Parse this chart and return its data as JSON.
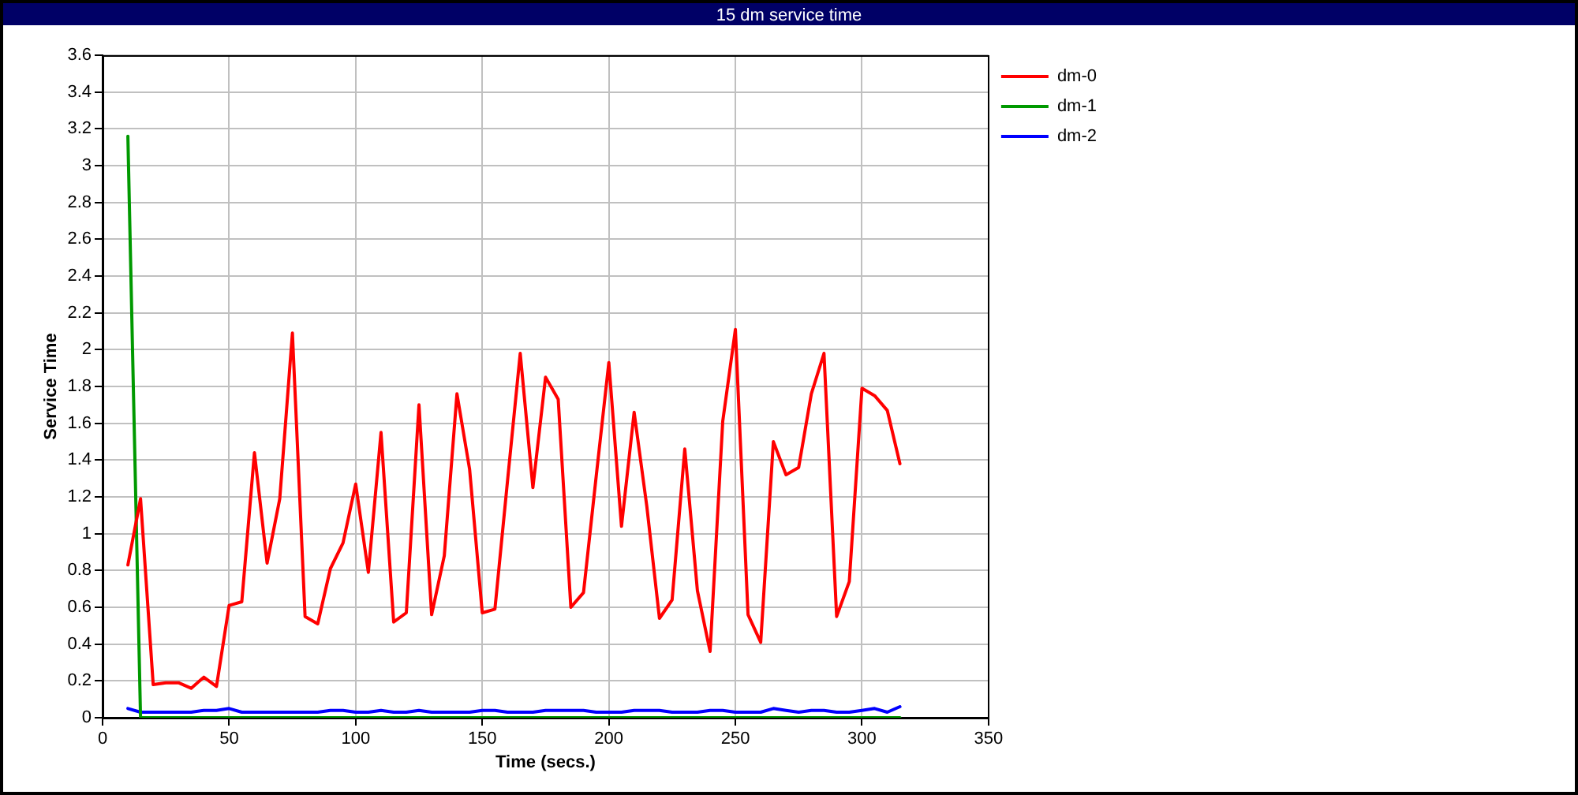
{
  "chart_data": {
    "type": "line",
    "title": "15 dm service time",
    "xlabel": "Time (secs.)",
    "ylabel": "Service Time",
    "x": [
      10,
      15,
      20,
      25,
      30,
      35,
      40,
      45,
      50,
      55,
      60,
      65,
      70,
      75,
      80,
      85,
      90,
      95,
      100,
      105,
      110,
      115,
      120,
      125,
      130,
      135,
      140,
      145,
      150,
      155,
      160,
      165,
      170,
      175,
      180,
      185,
      190,
      195,
      200,
      205,
      210,
      215,
      220,
      225,
      230,
      235,
      240,
      245,
      250,
      255,
      260,
      265,
      270,
      275,
      280,
      285,
      290,
      295,
      300,
      305,
      310,
      315
    ],
    "series": [
      {
        "name": "dm-0",
        "color": "#ff0000",
        "values": [
          0.83,
          1.19,
          0.18,
          0.19,
          0.19,
          0.16,
          0.22,
          0.17,
          0.61,
          0.63,
          1.44,
          0.84,
          1.19,
          2.09,
          0.55,
          0.51,
          0.81,
          0.95,
          1.27,
          0.79,
          1.55,
          0.52,
          0.57,
          1.7,
          0.56,
          0.88,
          1.76,
          1.35,
          0.57,
          0.59,
          1.29,
          1.98,
          1.25,
          1.85,
          1.73,
          0.6,
          0.68,
          1.31,
          1.93,
          1.04,
          1.66,
          1.15,
          0.54,
          0.64,
          1.46,
          0.69,
          0.36,
          1.61,
          2.11,
          0.56,
          0.41,
          1.5,
          1.32,
          1.36,
          1.76,
          1.98,
          0.55,
          0.74,
          1.79,
          1.75,
          1.67,
          1.38
        ]
      },
      {
        "name": "dm-1",
        "color": "#009900",
        "values": [
          3.16,
          0,
          0,
          0,
          0,
          0,
          0,
          0,
          0,
          0,
          0,
          0,
          0,
          0,
          0,
          0,
          0,
          0,
          0,
          0,
          0,
          0,
          0,
          0,
          0,
          0,
          0,
          0,
          0,
          0,
          0,
          0,
          0,
          0,
          0,
          0,
          0,
          0,
          0,
          0,
          0,
          0,
          0,
          0,
          0,
          0,
          0,
          0,
          0,
          0,
          0,
          0,
          0,
          0,
          0,
          0,
          0,
          0,
          0,
          0,
          0,
          0
        ]
      },
      {
        "name": "dm-2",
        "color": "#0000ff",
        "values": [
          0.05,
          0.03,
          0.03,
          0.03,
          0.03,
          0.03,
          0.04,
          0.04,
          0.05,
          0.03,
          0.03,
          0.03,
          0.03,
          0.03,
          0.03,
          0.03,
          0.04,
          0.04,
          0.03,
          0.03,
          0.04,
          0.03,
          0.03,
          0.04,
          0.03,
          0.03,
          0.03,
          0.03,
          0.04,
          0.04,
          0.03,
          0.03,
          0.03,
          0.04,
          0.04,
          0.04,
          0.04,
          0.03,
          0.03,
          0.03,
          0.04,
          0.04,
          0.04,
          0.03,
          0.03,
          0.03,
          0.04,
          0.04,
          0.03,
          0.03,
          0.03,
          0.05,
          0.04,
          0.03,
          0.04,
          0.04,
          0.03,
          0.03,
          0.04,
          0.05,
          0.03,
          0.06
        ]
      }
    ],
    "xlim": [
      0,
      350
    ],
    "xticks": [
      0,
      50,
      100,
      150,
      200,
      250,
      300,
      350
    ],
    "ylim": [
      0,
      3.6
    ],
    "yticks": [
      0,
      0.2,
      0.4,
      0.6,
      0.8,
      1,
      1.2,
      1.4,
      1.6,
      1.8,
      2,
      2.2,
      2.4,
      2.6,
      2.8,
      3,
      3.2,
      3.4,
      3.6
    ],
    "grid": true,
    "legend": "right",
    "marker": "none"
  }
}
